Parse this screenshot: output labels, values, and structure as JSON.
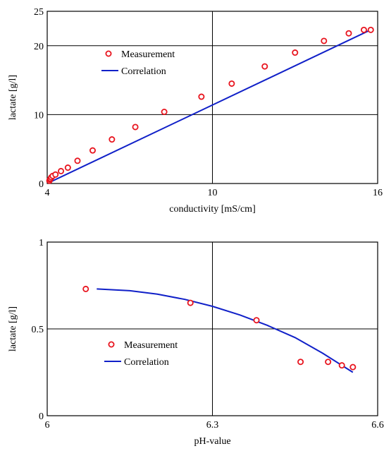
{
  "chart_data": [
    {
      "type": "scatter",
      "xlabel": "conductivity [mS/cm]",
      "ylabel": "lactate [g/l]",
      "xlim": [
        4,
        16
      ],
      "ylim": [
        0,
        25
      ],
      "x_ticks": [
        "4",
        "10",
        "16"
      ],
      "y_ticks": [
        "0",
        "10",
        "20",
        "25"
      ],
      "grid": {
        "x": [
          10
        ],
        "y": [
          10,
          20
        ]
      },
      "legend": {
        "placement": "upper-left",
        "entries": [
          "Measurement",
          "Correlation"
        ]
      },
      "series": [
        {
          "name": "Measurement",
          "marker": "open-circle",
          "color": "#e8141e",
          "x": [
            4.08,
            4.1,
            4.12,
            4.15,
            4.2,
            4.3,
            4.5,
            4.75,
            5.1,
            5.65,
            6.35,
            7.2,
            8.25,
            9.6,
            10.7,
            11.9,
            13.0,
            14.05,
            14.95,
            15.5,
            15.75
          ],
          "y": [
            0.4,
            0.6,
            0.7,
            0.9,
            1.1,
            1.3,
            1.8,
            2.3,
            3.3,
            4.8,
            6.4,
            8.2,
            10.4,
            12.6,
            14.5,
            17.0,
            19.0,
            20.7,
            21.8,
            22.3,
            22.3
          ]
        },
        {
          "name": "Correlation",
          "line": "solid",
          "color": "#1020c8",
          "x": [
            4.05,
            15.85
          ],
          "y": [
            0.1,
            22.5
          ]
        }
      ]
    },
    {
      "type": "scatter",
      "xlabel": "pH-value",
      "ylabel": "lactate [g/l]",
      "xlim": [
        6,
        6.6
      ],
      "ylim": [
        0,
        1
      ],
      "x_ticks": [
        "6",
        "6.3",
        "6.6"
      ],
      "y_ticks": [
        "0",
        "0.5",
        "1"
      ],
      "grid": {
        "x": [
          6.3
        ],
        "y": [
          0.5
        ]
      },
      "legend": {
        "placement": "lower-left",
        "entries": [
          "Measurement",
          "Correlation"
        ]
      },
      "series": [
        {
          "name": "Measurement",
          "marker": "open-circle",
          "color": "#e8141e",
          "x": [
            6.07,
            6.26,
            6.38,
            6.46,
            6.51,
            6.535,
            6.555
          ],
          "y": [
            0.73,
            0.65,
            0.55,
            0.31,
            0.31,
            0.29,
            0.28
          ]
        },
        {
          "name": "Correlation",
          "line": "solid",
          "color": "#1020c8",
          "x": [
            6.09,
            6.15,
            6.2,
            6.25,
            6.3,
            6.35,
            6.4,
            6.45,
            6.5,
            6.54,
            6.555
          ],
          "y": [
            0.73,
            0.72,
            0.7,
            0.67,
            0.63,
            0.58,
            0.52,
            0.45,
            0.36,
            0.28,
            0.25
          ]
        }
      ]
    }
  ]
}
